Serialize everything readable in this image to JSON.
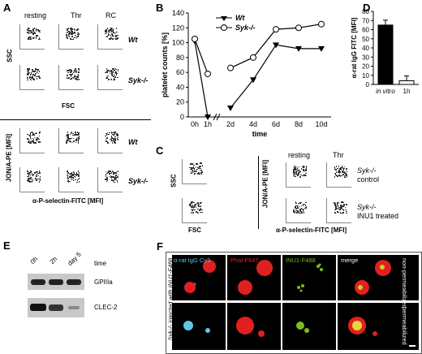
{
  "panels": {
    "A": "A",
    "B": "B",
    "C": "C",
    "D": "D",
    "E": "E",
    "F": "F"
  },
  "a": {
    "col_resting": "resting",
    "col_thr": "Thr",
    "col_rc": "RC",
    "row_wt": "Wt",
    "row_syk": "Syk-/-",
    "yl_ssc": "SSC",
    "xl_fsc": "FSC",
    "yl_jon": "JON/A-PE [MFI]",
    "xl_psel": "α-P-selectin-FITC [MFI]",
    "row_wt2": "Wt",
    "row_syk2": "Syk-/-"
  },
  "b": {
    "ylabel": "platelet counts [%]",
    "xlabel": "time",
    "legend_wt": "Wt",
    "legend_syk": "Syk-/-",
    "yticks": [
      "0",
      "20",
      "40",
      "60",
      "80",
      "100",
      "120",
      "140"
    ],
    "xticks": [
      "0h",
      "1h",
      "2d",
      "4d",
      "6d",
      "8d",
      "10d"
    ]
  },
  "c": {
    "yl_ssc": "SSC",
    "xl_fsc": "FSC",
    "col_resting": "resting",
    "col_thr": "Thr",
    "yl_jon": "JON/A-PE [MFI]",
    "xl_psel": "α-P-selectin-FITC [MFI]",
    "row1_a": "Syk-/-",
    "row1_b": "control",
    "row2_a": "Syk-/-",
    "row2_b": "INU1 treated"
  },
  "d": {
    "ylabel": "α-rat IgG FITC [MFI]",
    "yticks": [
      "0",
      "10",
      "20",
      "30",
      "40",
      "50",
      "60",
      "70",
      "80"
    ],
    "categories": [
      "in vitro",
      "1h"
    ]
  },
  "e": {
    "times": [
      "0h",
      "2h",
      "day 5"
    ],
    "time_label": "time",
    "band1": "GPIIIa",
    "band2": "CLEC-2"
  },
  "f": {
    "side": "Syk-/- injected with INU1-F488",
    "cols": [
      "α-rat IgG Cy3",
      "Phal-F647",
      "INU1-F488",
      "merge"
    ],
    "row1": "non-permeabilized",
    "row2": "permeabilized"
  },
  "chart_data": [
    {
      "type": "line",
      "title": "",
      "xlabel": "time",
      "ylabel": "platelet counts [%]",
      "x": [
        "0h",
        "1h",
        "2d",
        "4d",
        "6d",
        "8d",
        "10d"
      ],
      "series": [
        {
          "name": "Wt",
          "values": [
            102,
            0,
            12,
            50,
            97,
            92,
            92
          ]
        },
        {
          "name": "Syk-/-",
          "values": [
            105,
            58,
            66,
            80,
            118,
            120,
            125
          ]
        }
      ],
      "ylim": [
        0,
        140
      ]
    },
    {
      "type": "bar",
      "title": "",
      "categories": [
        "in vitro",
        "1h"
      ],
      "values": [
        65,
        4
      ],
      "ylabel": "α-rat IgG FITC [MFI]",
      "ylim": [
        0,
        80
      ]
    }
  ],
  "colors": {
    "syk_green": "#7dbb22",
    "cy3_cyan": "#5fc8e6",
    "phal_red": "#e02020",
    "wt_marker": "#000000"
  }
}
